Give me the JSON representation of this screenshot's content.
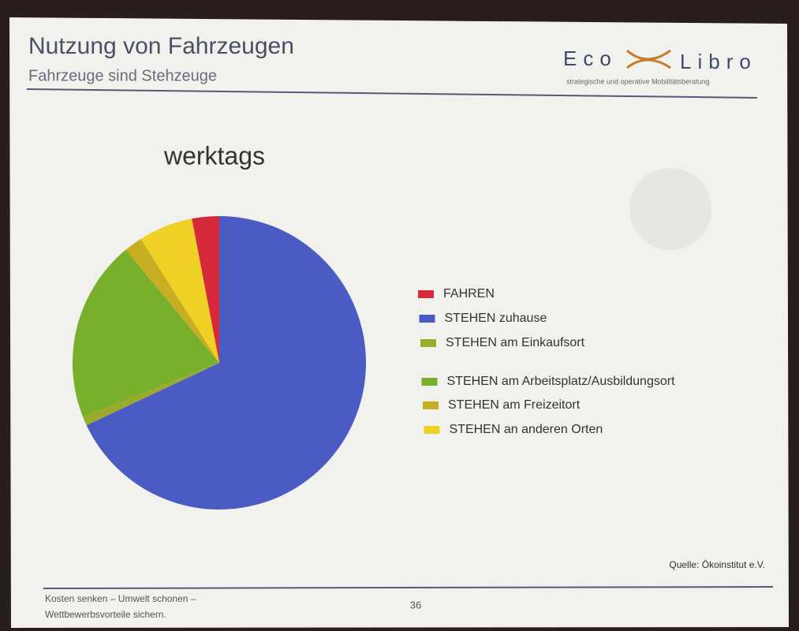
{
  "chart_data": {
    "type": "pie",
    "title": "werktags",
    "categories": [
      "FAHREN",
      "STEHEN zuhause",
      "STEHEN am Einkaufsort",
      "STEHEN am Arbeitsplatz/Ausbildungsort",
      "STEHEN am Freizeitort",
      "STEHEN an anderen Orten"
    ],
    "values": [
      3,
      68,
      1,
      20,
      2,
      6
    ],
    "colors": [
      "#d42a3a",
      "#4a5bc4",
      "#9aaa2a",
      "#78b02c",
      "#c8ae22",
      "#efd024"
    ],
    "legend": "right"
  },
  "slide": {
    "title": "Nutzung von Fahrzeugen",
    "subtitle": "Fahrzeuge sind Stehzeuge",
    "logo_left": "Eco",
    "logo_right": "Libro",
    "tagline": "strategische und operative Mobilitätsberatung",
    "source": "Quelle: Ökoinstitut e.V.",
    "footer_line1": "Kosten senken – Umwelt schonen –",
    "footer_line2": "Wettbewerbsvorteile sichern.",
    "page_number": "36"
  }
}
